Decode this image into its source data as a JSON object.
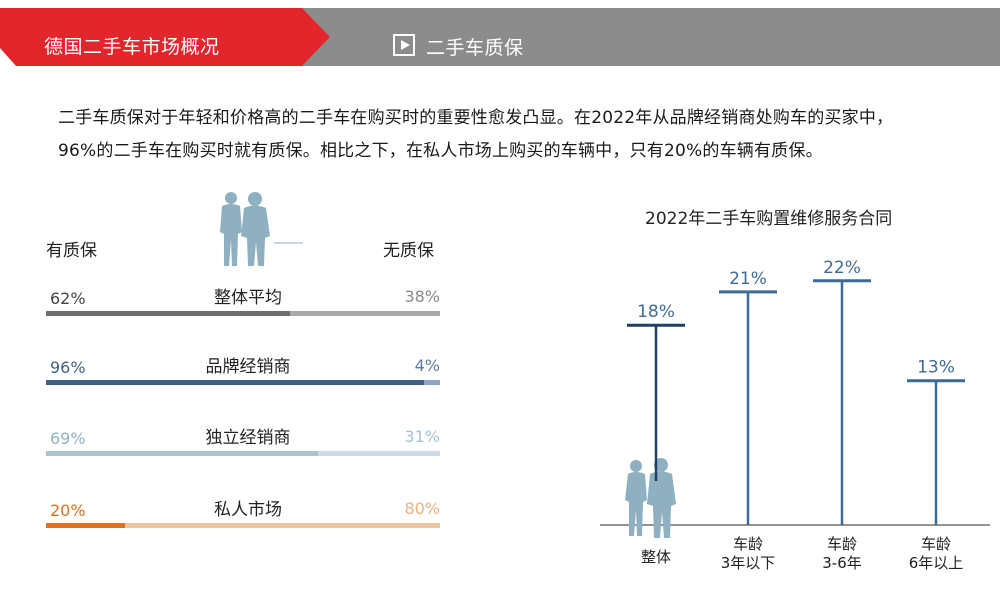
{
  "header": {
    "title": "德国二手车市场概况",
    "subtitle": "二手车质保",
    "colors": {
      "red": "#e3262b",
      "gray": "#8c8c8c"
    }
  },
  "intro": {
    "line1": "二手车质保对于年轻和价格高的二手车在购买时的重要性愈发凸显。在2022年从品牌经销商处购车的买家中，",
    "line2": "96%的二手车在购买时就有质保。相比之下，在私人市场上购买的车辆中，只有20%的车辆有质保。"
  },
  "warranty": {
    "with_label": "有质保",
    "without_label": "无质保",
    "rows": [
      {
        "label": "整体平均",
        "with": 62,
        "without": 38,
        "with_text": "62%",
        "without_text": "38%",
        "color_with": "#6d6d6d",
        "color_without": "#a9a9a9",
        "text_with": "#444444",
        "text_without": "#8a8a8a"
      },
      {
        "label": "品牌经销商",
        "with": 96,
        "without": 4,
        "with_text": "96%",
        "without_text": "4%",
        "color_with": "#3f5f86",
        "color_without": "#8aa6c4",
        "text_with": "#3f5f86",
        "text_without": "#5a7ca3"
      },
      {
        "label": "独立经销商",
        "with": 69,
        "without": 31,
        "with_text": "69%",
        "without_text": "31%",
        "color_with": "#a9c3d5",
        "color_without": "#cddbe6",
        "text_with": "#8fb0c6",
        "text_without": "#a9c3d5"
      },
      {
        "label": "私人市场",
        "with": 20,
        "without": 80,
        "with_text": "20%",
        "without_text": "80%",
        "color_with": "#e0701e",
        "color_without": "#f1c39d",
        "text_with": "#e0701e",
        "text_without": "#f0b080"
      }
    ]
  },
  "chart_data": {
    "type": "bar",
    "title": "2022年二手车购置维修服务合同",
    "categories": [
      {
        "line1": "整体",
        "line2": ""
      },
      {
        "line1": "车龄",
        "line2": "3年以下"
      },
      {
        "line1": "车龄",
        "line2": "3-6年"
      },
      {
        "line1": "车龄",
        "line2": "6年以上"
      }
    ],
    "values": [
      18,
      21,
      22,
      13
    ],
    "value_labels": [
      "18%",
      "21%",
      "22%",
      "13%"
    ],
    "ylim": [
      0,
      25
    ],
    "colors": {
      "line": "#3f6a96",
      "first_line": "#1f3f66",
      "label": "#3f6a96",
      "axis": "#555555"
    }
  }
}
